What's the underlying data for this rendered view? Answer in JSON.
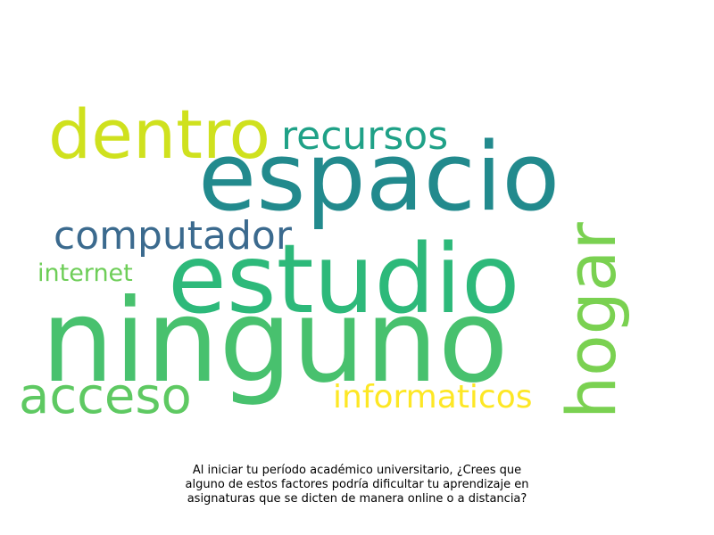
{
  "word_cloud": {
    "words": [
      {
        "id": "dentro",
        "text": "dentro",
        "color": "#cfe11e"
      },
      {
        "id": "recursos",
        "text": "recursos",
        "color": "#1fa187"
      },
      {
        "id": "espacio",
        "text": "espacio",
        "color": "#228a8d"
      },
      {
        "id": "computador",
        "text": "computador",
        "color": "#3b6a8e"
      },
      {
        "id": "internet",
        "text": "internet",
        "color": "#6ece58"
      },
      {
        "id": "estudio",
        "text": "estudio",
        "color": "#2db97a"
      },
      {
        "id": "ninguno",
        "text": "ninguno",
        "color": "#48c16e"
      },
      {
        "id": "hogar",
        "text": "hogar",
        "color": "#7ad151"
      },
      {
        "id": "acceso",
        "text": "acceso",
        "color": "#5ec962"
      },
      {
        "id": "informaticos",
        "text": "informaticos",
        "color": "#fde725"
      }
    ]
  },
  "caption": {
    "lines": [
      "Al iniciar tu período académico universitario, ¿Crees que",
      "alguno de estos factores podría dificultar tu aprendizaje en",
      "asignaturas que se dicten de manera online o a distancia?"
    ]
  }
}
